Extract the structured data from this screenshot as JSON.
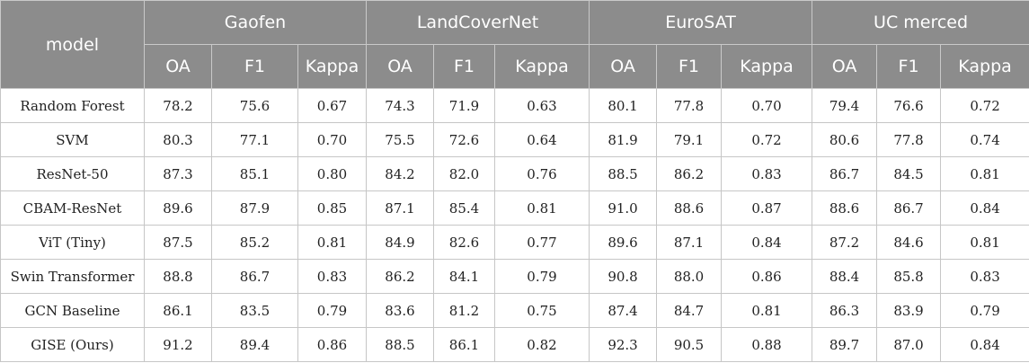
{
  "table": {
    "model_header": "model",
    "datasets": [
      "Gaofen",
      "LandCoverNet",
      "EuroSAT",
      "UC merced"
    ],
    "metrics": [
      "OA",
      "F1",
      "Kappa"
    ],
    "rows": [
      {
        "model": "Random Forest",
        "values": [
          "78.2",
          "75.6",
          "0.67",
          "74.3",
          "71.9",
          "0.63",
          "80.1",
          "77.8",
          "0.70",
          "79.4",
          "76.6",
          "0.72"
        ]
      },
      {
        "model": "SVM",
        "values": [
          "80.3",
          "77.1",
          "0.70",
          "75.5",
          "72.6",
          "0.64",
          "81.9",
          "79.1",
          "0.72",
          "80.6",
          "77.8",
          "0.74"
        ]
      },
      {
        "model": "ResNet-50",
        "values": [
          "87.3",
          "85.1",
          "0.80",
          "84.2",
          "82.0",
          "0.76",
          "88.5",
          "86.2",
          "0.83",
          "86.7",
          "84.5",
          "0.81"
        ]
      },
      {
        "model": "CBAM-ResNet",
        "values": [
          "89.6",
          "87.9",
          "0.85",
          "87.1",
          "85.4",
          "0.81",
          "91.0",
          "88.6",
          "0.87",
          "88.6",
          "86.7",
          "0.84"
        ]
      },
      {
        "model": "ViT (Tiny)",
        "values": [
          "87.5",
          "85.2",
          "0.81",
          "84.9",
          "82.6",
          "0.77",
          "89.6",
          "87.1",
          "0.84",
          "87.2",
          "84.6",
          "0.81"
        ]
      },
      {
        "model": "Swin Transformer",
        "values": [
          "88.8",
          "86.7",
          "0.83",
          "86.2",
          "84.1",
          "0.79",
          "90.8",
          "88.0",
          "0.86",
          "88.4",
          "85.8",
          "0.83"
        ]
      },
      {
        "model": "GCN Baseline",
        "values": [
          "86.1",
          "83.5",
          "0.79",
          "83.6",
          "81.2",
          "0.75",
          "87.4",
          "84.7",
          "0.81",
          "86.3",
          "83.9",
          "0.79"
        ]
      },
      {
        "model": "GISE (Ours)",
        "values": [
          "91.2",
          "89.4",
          "0.86",
          "88.5",
          "86.1",
          "0.82",
          "92.3",
          "90.5",
          "0.88",
          "89.7",
          "87.0",
          "0.84"
        ]
      }
    ]
  },
  "colors": {
    "header_bg": "#8c8c8c",
    "header_text": "#ffffff",
    "border": "#c6c6c6"
  }
}
